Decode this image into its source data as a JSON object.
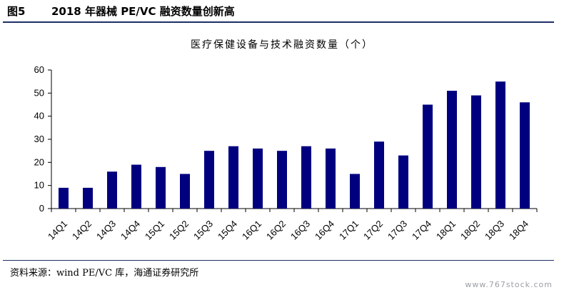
{
  "figure": {
    "number": "图5",
    "title": "2018 年器械 PE/VC 融资数量创新高"
  },
  "source": "资料来源：wind PE/VC 库，海通证券研究所",
  "watermark": "www.767stock.com",
  "colors": {
    "bar": "#00007f",
    "rule": "#1f2f66",
    "axis": "#000000"
  },
  "chart_data": {
    "type": "bar",
    "title": "医疗保健设备与技术融资数量（个）",
    "xlabel": "",
    "ylabel": "",
    "categories": [
      "14Q1",
      "14Q2",
      "14Q3",
      "14Q4",
      "15Q1",
      "15Q2",
      "15Q3",
      "15Q4",
      "16Q1",
      "16Q2",
      "16Q3",
      "16Q4",
      "17Q1",
      "17Q2",
      "17Q3",
      "17Q4",
      "18Q1",
      "18Q2",
      "18Q3",
      "18Q4"
    ],
    "values": [
      9,
      9,
      16,
      19,
      18,
      15,
      25,
      27,
      26,
      25,
      27,
      26,
      15,
      29,
      23,
      45,
      51,
      49,
      55,
      46
    ],
    "ylim": [
      0,
      60
    ],
    "yticks": [
      0,
      10,
      20,
      30,
      40,
      50,
      60
    ],
    "grid": false,
    "legend": "none"
  }
}
